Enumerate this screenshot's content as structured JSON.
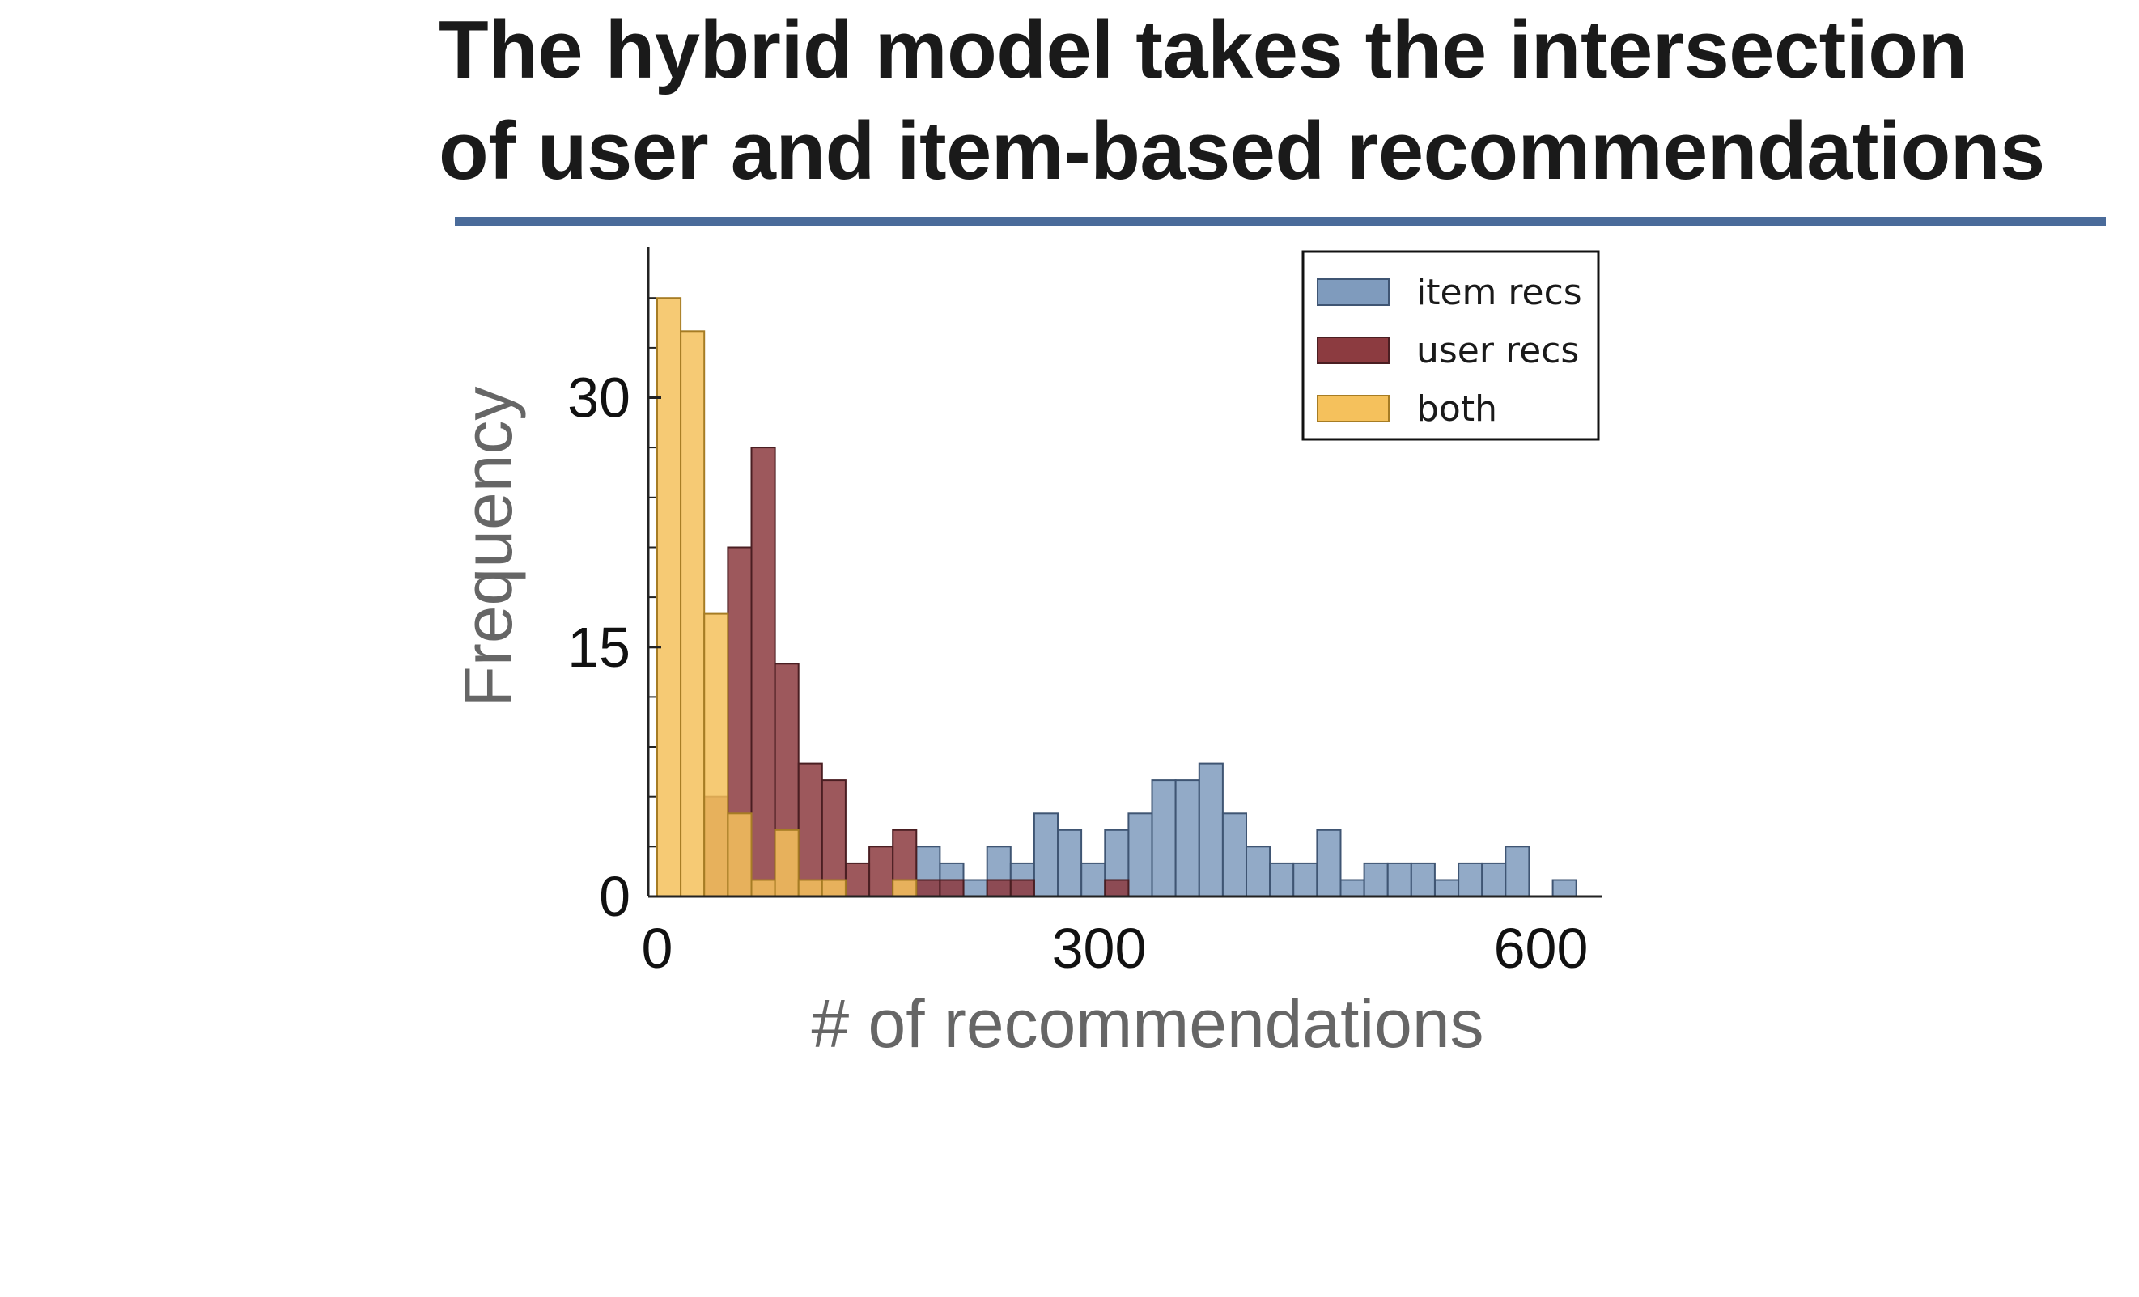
{
  "slide": {
    "title_lines": [
      "The hybrid model takes the intersection",
      "of user and item-based recommendations"
    ],
    "rule_color": "#4a6b9a"
  },
  "chart_data": {
    "type": "bar",
    "bin_width": 16,
    "xlim": [
      0,
      640
    ],
    "ylim": [
      0,
      36
    ],
    "xticks": [
      0,
      300,
      600
    ],
    "yticks": [
      0,
      15,
      30
    ],
    "xlabel": "# of recommendations",
    "ylabel": "Frequency",
    "legend_position": "top-right",
    "series": [
      {
        "name": "item recs",
        "color": "#7f9bbd",
        "edge": "#3f5573",
        "bins": [
          {
            "x": 176,
            "y": 3
          },
          {
            "x": 192,
            "y": 2
          },
          {
            "x": 208,
            "y": 1
          },
          {
            "x": 224,
            "y": 3
          },
          {
            "x": 240,
            "y": 2
          },
          {
            "x": 256,
            "y": 5
          },
          {
            "x": 272,
            "y": 4
          },
          {
            "x": 288,
            "y": 2
          },
          {
            "x": 304,
            "y": 4
          },
          {
            "x": 320,
            "y": 5
          },
          {
            "x": 336,
            "y": 7
          },
          {
            "x": 352,
            "y": 7
          },
          {
            "x": 368,
            "y": 8
          },
          {
            "x": 384,
            "y": 5
          },
          {
            "x": 400,
            "y": 3
          },
          {
            "x": 416,
            "y": 2
          },
          {
            "x": 432,
            "y": 2
          },
          {
            "x": 448,
            "y": 4
          },
          {
            "x": 464,
            "y": 1
          },
          {
            "x": 480,
            "y": 2
          },
          {
            "x": 496,
            "y": 2
          },
          {
            "x": 512,
            "y": 2
          },
          {
            "x": 528,
            "y": 1
          },
          {
            "x": 544,
            "y": 2
          },
          {
            "x": 560,
            "y": 2
          },
          {
            "x": 576,
            "y": 3
          },
          {
            "x": 608,
            "y": 1
          }
        ]
      },
      {
        "name": "user recs",
        "color": "#8c3b40",
        "edge": "#4a1e22",
        "bins": [
          {
            "x": 32,
            "y": 6
          },
          {
            "x": 48,
            "y": 21
          },
          {
            "x": 64,
            "y": 27
          },
          {
            "x": 80,
            "y": 14
          },
          {
            "x": 96,
            "y": 8
          },
          {
            "x": 112,
            "y": 7
          },
          {
            "x": 128,
            "y": 2
          },
          {
            "x": 144,
            "y": 3
          },
          {
            "x": 160,
            "y": 4
          },
          {
            "x": 176,
            "y": 1
          },
          {
            "x": 192,
            "y": 1
          },
          {
            "x": 224,
            "y": 1
          },
          {
            "x": 240,
            "y": 1
          },
          {
            "x": 304,
            "y": 1
          }
        ]
      },
      {
        "name": "both",
        "color": "#f5c15c",
        "edge": "#a67c24",
        "bins": [
          {
            "x": 0,
            "y": 36
          },
          {
            "x": 16,
            "y": 34
          },
          {
            "x": 32,
            "y": 17
          },
          {
            "x": 48,
            "y": 5
          },
          {
            "x": 64,
            "y": 1
          },
          {
            "x": 80,
            "y": 4
          },
          {
            "x": 96,
            "y": 1
          },
          {
            "x": 112,
            "y": 1
          },
          {
            "x": 160,
            "y": 1
          }
        ]
      }
    ]
  }
}
